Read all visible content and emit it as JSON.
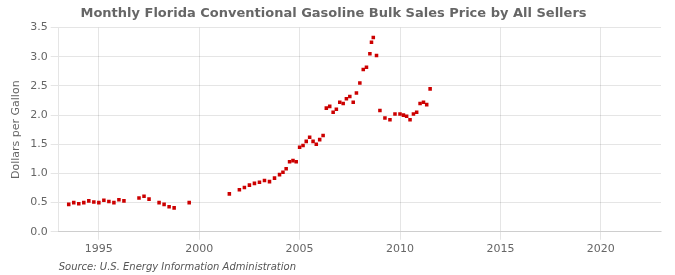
{
  "chart_data": {
    "type": "scatter",
    "title": "Monthly Florida Conventional Gasoline Bulk Sales Price by All Sellers",
    "ylabel": "Dollars per Gallon",
    "annotation": "Source: U.S. Energy Information Administration",
    "color": "#CC0000",
    "marker": "square",
    "grid": true,
    "xlim": [
      1993.0,
      2023.0
    ],
    "ylim": [
      0.0,
      3.5
    ],
    "xticks": [
      1995,
      2000,
      2005,
      2010,
      2015,
      2020
    ],
    "yticks": [
      {
        "value": 0.0,
        "label": "0.0"
      },
      0.5,
      {
        "value": 1.0,
        "label": "1.0"
      },
      1.5,
      {
        "value": 2.0,
        "label": "2.0"
      },
      2.5,
      {
        "value": 3.0,
        "label": "3.0"
      },
      3.5
    ],
    "x": [
      1993.5,
      1993.75,
      1994.0,
      1994.25,
      1994.5,
      1994.75,
      1995.0,
      1995.25,
      1995.5,
      1995.75,
      1996.0,
      1996.25,
      1997.0,
      1997.25,
      1997.5,
      1998.0,
      1998.25,
      1998.5,
      1998.75,
      1999.5,
      2001.5,
      2002.0,
      2002.25,
      2002.5,
      2002.75,
      2003.0,
      2003.25,
      2003.5,
      2003.75,
      2004.0,
      2004.17,
      2004.33,
      2004.5,
      2004.67,
      2004.83,
      2005.0,
      2005.17,
      2005.33,
      2005.5,
      2005.67,
      2005.83,
      2006.0,
      2006.17,
      2006.33,
      2006.5,
      2006.67,
      2006.83,
      2007.0,
      2007.17,
      2007.33,
      2007.5,
      2007.67,
      2007.83,
      2008.0,
      2008.17,
      2008.33,
      2008.5,
      2008.58,
      2008.67,
      2008.83,
      2009.0,
      2009.25,
      2009.5,
      2009.75,
      2010.0,
      2010.17,
      2010.33,
      2010.5,
      2010.67,
      2010.83,
      2011.0,
      2011.17,
      2011.33,
      2011.5
    ],
    "values": [
      0.47,
      0.5,
      0.48,
      0.5,
      0.53,
      0.51,
      0.5,
      0.54,
      0.52,
      0.5,
      0.55,
      0.53,
      0.58,
      0.61,
      0.56,
      0.5,
      0.47,
      0.43,
      0.41,
      0.5,
      0.65,
      0.72,
      0.76,
      0.8,
      0.83,
      0.85,
      0.88,
      0.86,
      0.92,
      0.98,
      1.02,
      1.08,
      1.2,
      1.22,
      1.2,
      1.45,
      1.48,
      1.55,
      1.62,
      1.55,
      1.5,
      1.58,
      1.65,
      2.12,
      2.15,
      2.05,
      2.1,
      2.22,
      2.2,
      2.28,
      2.32,
      2.22,
      2.38,
      2.55,
      2.78,
      2.82,
      3.05,
      3.25,
      3.33,
      3.02,
      2.08,
      1.95,
      1.92,
      2.02,
      2.02,
      2.0,
      1.98,
      1.92,
      2.02,
      2.05,
      2.2,
      2.22,
      2.18,
      2.45
    ]
  }
}
